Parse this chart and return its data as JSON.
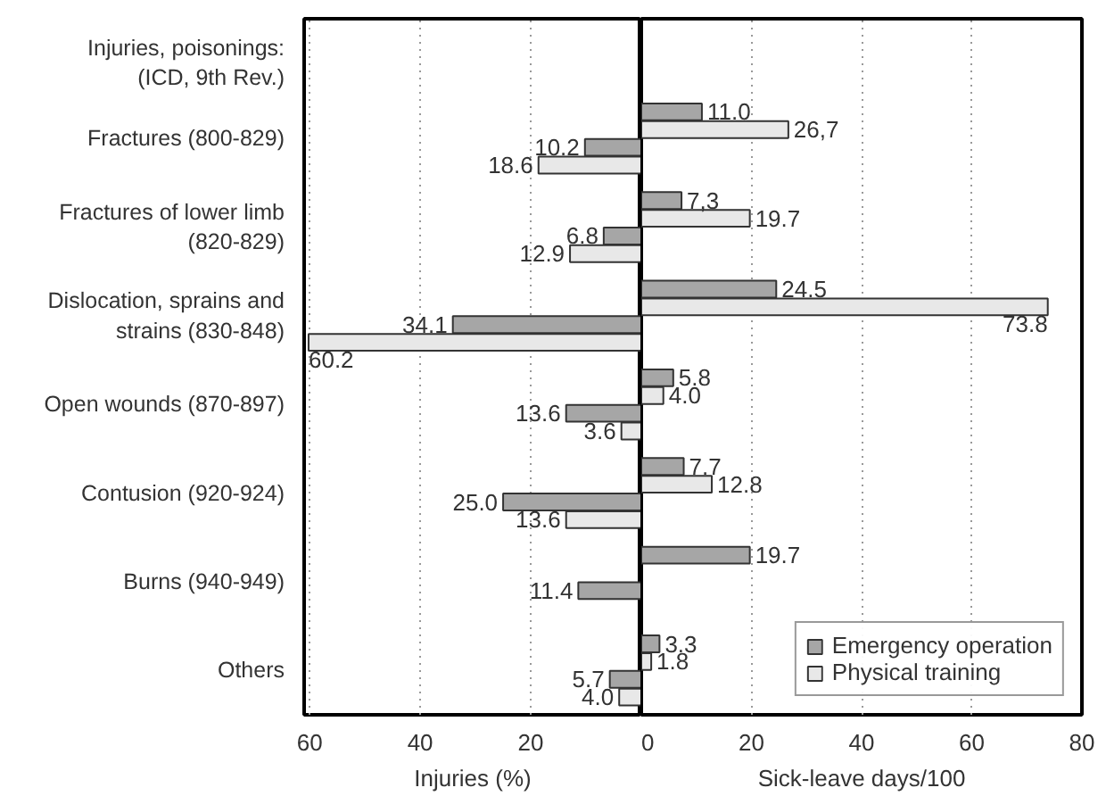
{
  "chart_data": [
    {
      "type": "bar",
      "orientation": "horizontal",
      "ylabel": "Injuries, poisonings: (ICD, 9th Rev.)",
      "xlabel": "Injuries (%)",
      "categories": [
        "Fractures (800-829)",
        "Fractures of lower limb (820-829)",
        "Dislocation, sprains and strains (830-848)",
        "Open wounds (870-897)",
        "Contusion (920-924)",
        "Burns (940-949)",
        "Others"
      ],
      "xlim": [
        61,
        0
      ],
      "xticks": [
        60,
        40,
        20
      ],
      "grid": "x",
      "series": [
        {
          "color": "#a6a6a6",
          "values": [
            10.2,
            6.8,
            34.1,
            13.6,
            25.0,
            11.4,
            5.7
          ],
          "value_labels": [
            "10.2",
            "6.8",
            "34.1",
            "13.6",
            "25.0",
            "11.4",
            "5.7"
          ]
        },
        {
          "color": "#e8e8e8",
          "values": [
            18.6,
            12.9,
            60.2,
            3.6,
            13.6,
            null,
            4.0
          ],
          "value_labels": [
            "18.6",
            "12.9",
            "60.2",
            "3.6",
            "13.6",
            null,
            "4.0"
          ]
        }
      ]
    },
    {
      "type": "bar",
      "orientation": "horizontal",
      "xlabel": "Sick-leave days/100",
      "categories": [
        null,
        null,
        null,
        null,
        null,
        null,
        null
      ],
      "xlim": [
        0,
        80
      ],
      "xticks": [
        0,
        20,
        40,
        60,
        80
      ],
      "grid": "x",
      "legend": "bottom right",
      "tick_labels": "x",
      "series": [
        {
          "name": "Emergency operation",
          "color": "#a6a6a6",
          "values": [
            11.0,
            7.3,
            24.5,
            5.8,
            7.7,
            19.7,
            3.3
          ],
          "value_labels": [
            "11.0",
            "7,3",
            "24.5",
            "5.8",
            "7.7",
            "19.7",
            "3.3"
          ]
        },
        {
          "name": "Physical training",
          "color": "#e8e8e8",
          "values": [
            26.7,
            19.7,
            73.8,
            4.0,
            12.8,
            null,
            1.8
          ],
          "value_labels": [
            "26,7",
            "19.7",
            "73.8",
            "4.0",
            "12.8",
            null,
            "1.8"
          ]
        }
      ]
    }
  ]
}
